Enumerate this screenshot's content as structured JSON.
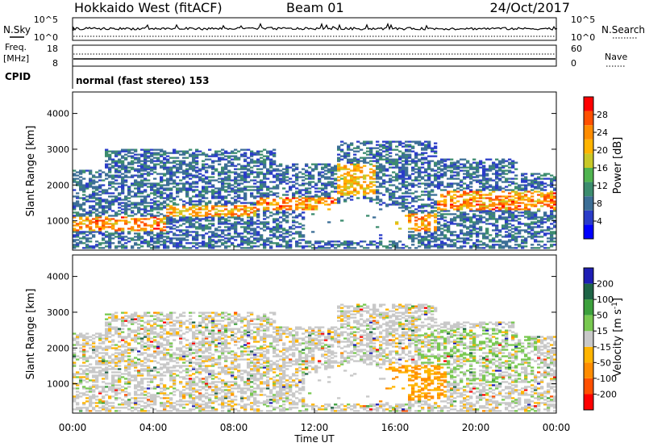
{
  "header": {
    "title": "Hokkaido West (fitACF)",
    "beam": "Beam 01",
    "date": "24/Oct/2017"
  },
  "noise_panel": {
    "left_label": "N.Sky",
    "right_label": "N.Search",
    "left_ticks": [
      "10^5",
      "10^0"
    ],
    "right_ticks": [
      "10^5",
      "10^0"
    ]
  },
  "freq_panel": {
    "left_label_1": "Freq.",
    "left_label_2": "[MHz]",
    "right_label": "Nave",
    "left_ticks": [
      "18",
      "8"
    ],
    "right_ticks": [
      "60",
      "0"
    ]
  },
  "cpid": {
    "label": "CPID",
    "value": "normal (fast stereo) 153"
  },
  "chart_data": [
    {
      "type": "heatmap",
      "name": "power",
      "ylabel": "Slant Range [km]",
      "xlabel": "Time UT",
      "x_ticks": [
        "00:00",
        "04:00",
        "08:00",
        "12:00",
        "16:00",
        "20:00",
        "00:00"
      ],
      "y_ticks": [
        "1000",
        "2000",
        "3000",
        "4000"
      ],
      "ylim": [
        180,
        4600
      ],
      "xlim": [
        0,
        24
      ],
      "colorbar": {
        "label": "Power [dB]",
        "ticks": [
          "4",
          "8",
          "12",
          "16",
          "20",
          "24",
          "28"
        ],
        "colors": [
          "#0000ff",
          "#2a3cc8",
          "#3c6e96",
          "#3c8c6e",
          "#50b450",
          "#c8c828",
          "#ffb400",
          "#ff8c00",
          "#ff5000",
          "#ff0000"
        ]
      },
      "bands": [
        {
          "t": [
            0,
            4.5
          ],
          "r": [
            700,
            1100
          ],
          "level": 0.8
        },
        {
          "t": [
            4.5,
            9
          ],
          "r": [
            1100,
            1400
          ],
          "level": 0.75
        },
        {
          "t": [
            9,
            13
          ],
          "r": [
            1300,
            1650
          ],
          "level": 0.8
        },
        {
          "t": [
            13,
            15
          ],
          "r": [
            1700,
            2600
          ],
          "level": 0.7
        },
        {
          "t": [
            16,
            18
          ],
          "r": [
            700,
            1200
          ],
          "level": 0.75
        },
        {
          "t": [
            18,
            24
          ],
          "r": [
            1300,
            1800
          ],
          "level": 0.8
        }
      ]
    },
    {
      "type": "heatmap",
      "name": "velocity",
      "ylabel": "Slant Range [km]",
      "xlabel": "Time UT",
      "x_ticks": [
        "00:00",
        "04:00",
        "08:00",
        "12:00",
        "16:00",
        "20:00",
        "00:00"
      ],
      "y_ticks": [
        "1000",
        "2000",
        "3000",
        "4000"
      ],
      "ylim": [
        180,
        4600
      ],
      "xlim": [
        0,
        24
      ],
      "colorbar": {
        "label": "Velocity [m s",
        "label_sup": "-1",
        "label_end": "]",
        "ticks": [
          "200",
          "100",
          "50",
          "15",
          "-15",
          "-50",
          "-100",
          "-200"
        ],
        "colors": [
          "#1e1eb4",
          "#1e6446",
          "#3ca03c",
          "#78c850",
          "#c8c8c8",
          "#ffb400",
          "#ff8c00",
          "#ff5000",
          "#ff0000"
        ]
      }
    }
  ]
}
